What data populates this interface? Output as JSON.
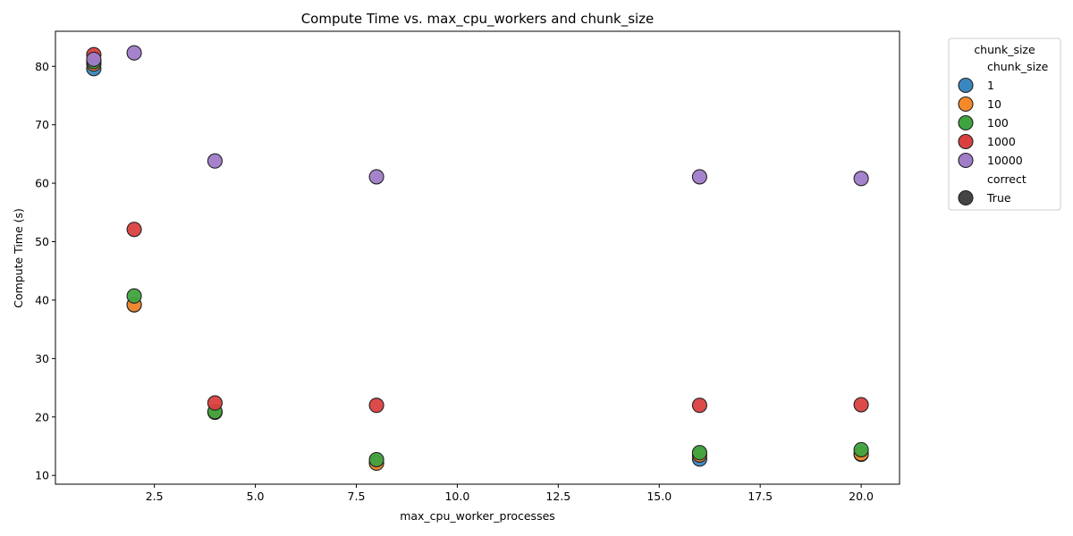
{
  "chart_data": {
    "type": "scatter",
    "title": "Compute Time vs. max_cpu_workers and chunk_size",
    "xlabel": "max_cpu_worker_processes",
    "ylabel": "Compute Time (s)",
    "xlim": [
      0.05,
      20.95
    ],
    "ylim": [
      8.5,
      86
    ],
    "x_ticks": [
      2.5,
      5.0,
      7.5,
      10.0,
      12.5,
      15.0,
      17.5,
      20.0
    ],
    "x_tick_labels": [
      "2.5",
      "5.0",
      "7.5",
      "10.0",
      "12.5",
      "15.0",
      "17.5",
      "20.0"
    ],
    "y_ticks": [
      10,
      20,
      30,
      40,
      50,
      60,
      70,
      80
    ],
    "y_tick_labels": [
      "10",
      "20",
      "30",
      "40",
      "50",
      "60",
      "70",
      "80"
    ],
    "grid": false,
    "legend": {
      "title": "chunk_size",
      "placement": "outside-right-top",
      "hue_title": "chunk_size",
      "style_title": "correct",
      "style_entries": [
        {
          "label": "True",
          "color": "#444444"
        }
      ]
    },
    "series": [
      {
        "name": "1",
        "color": "#3a86c0",
        "points": [
          [
            1,
            79.6
          ],
          [
            2,
            39.2
          ],
          [
            4,
            20.8
          ],
          [
            8,
            12.2
          ],
          [
            16,
            12.8
          ],
          [
            20,
            13.6
          ]
        ]
      },
      {
        "name": "10",
        "color": "#f5892a",
        "points": [
          [
            1,
            80.4
          ],
          [
            2,
            39.2
          ],
          [
            4,
            20.9
          ],
          [
            8,
            12.1
          ],
          [
            16,
            13.5
          ],
          [
            20,
            13.7
          ]
        ]
      },
      {
        "name": "100",
        "color": "#3fa43f",
        "points": [
          [
            1,
            80.8
          ],
          [
            2,
            40.7
          ],
          [
            4,
            20.9
          ],
          [
            8,
            12.7
          ],
          [
            16,
            13.9
          ],
          [
            20,
            14.4
          ]
        ]
      },
      {
        "name": "1000",
        "color": "#db4040",
        "points": [
          [
            1,
            82.0
          ],
          [
            2,
            52.1
          ],
          [
            4,
            22.4
          ],
          [
            8,
            22.0
          ],
          [
            16,
            22.0
          ],
          [
            20,
            22.1
          ]
        ]
      },
      {
        "name": "10000",
        "color": "#a07cc9",
        "points": [
          [
            1,
            81.2
          ],
          [
            2,
            82.3
          ],
          [
            4,
            63.8
          ],
          [
            8,
            61.1
          ],
          [
            16,
            61.1
          ],
          [
            20,
            60.8
          ]
        ]
      }
    ]
  }
}
